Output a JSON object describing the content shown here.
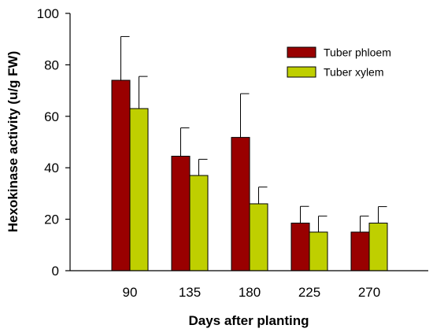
{
  "chart_data": {
    "type": "bar",
    "title": "",
    "xlabel": "Days after planting",
    "ylabel": "Hexokinase activity (u/g FW)",
    "categories": [
      "90",
      "135",
      "180",
      "225",
      "270"
    ],
    "ylim": [
      0,
      100
    ],
    "yticks": [
      0,
      20,
      40,
      60,
      80,
      100
    ],
    "grid": false,
    "legend_position": "top-right",
    "series": [
      {
        "name": "Tuber phloem",
        "color": "#990000",
        "values": [
          74,
          44.5,
          51.8,
          18.5,
          15
        ],
        "errors": [
          17,
          11,
          17,
          6.5,
          6.2
        ]
      },
      {
        "name": "Tuber xylem",
        "color": "#bfcf00",
        "values": [
          63,
          37,
          26,
          15,
          18.5
        ],
        "errors": [
          12.5,
          6.3,
          6.5,
          6.2,
          6.4
        ]
      }
    ]
  }
}
